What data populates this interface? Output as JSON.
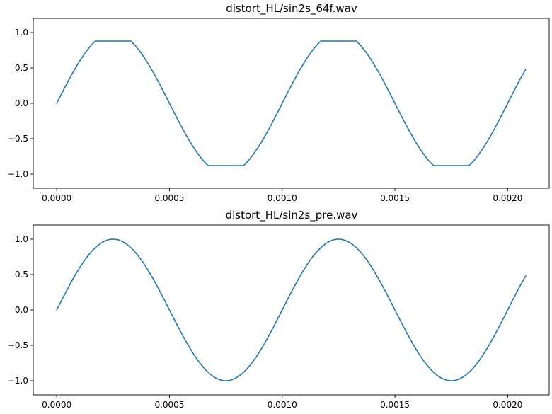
{
  "chart_data": [
    {
      "type": "line",
      "title": "distort_HL/sin2s_64f.wav",
      "xlabel": "",
      "ylabel": "",
      "xlim": [
        -0.000104,
        0.002184
      ],
      "ylim": [
        -1.2,
        1.2
      ],
      "xticks": [
        0.0,
        0.0005,
        0.001,
        0.0015,
        0.002
      ],
      "xtick_labels": [
        "0.0000",
        "0.0005",
        "0.0010",
        "0.0015",
        "0.0020"
      ],
      "yticks": [
        1.0,
        0.5,
        0.0,
        -0.5,
        -1.0
      ],
      "ytick_labels": [
        "1.0",
        "0.5",
        "0.0",
        "−0.5",
        "−1.0"
      ],
      "grid": false,
      "series": [
        {
          "color": "#1f77b4",
          "x": [
            0.0,
            5e-05,
            0.0001,
            0.000175,
            0.000325,
            0.0004,
            0.0005,
            0.0006,
            0.000675,
            0.000825,
            0.0009,
            0.001,
            0.0011,
            0.001175,
            0.001325,
            0.0014,
            0.0015,
            0.0016,
            0.001675,
            0.001825,
            0.0019,
            0.002,
            0.00208
          ],
          "y": [
            0.0,
            0.31,
            0.59,
            0.88,
            0.88,
            0.59,
            0.0,
            -0.59,
            -0.88,
            -0.88,
            -0.59,
            0.0,
            0.59,
            0.88,
            0.88,
            0.59,
            0.0,
            -0.59,
            -0.88,
            -0.88,
            -0.59,
            0.0,
            0.44
          ],
          "clip_level": 0.88
        }
      ]
    },
    {
      "type": "line",
      "title": "distort_HL/sin2s_pre.wav",
      "xlabel": "",
      "ylabel": "",
      "xlim": [
        -0.000104,
        0.002184
      ],
      "ylim": [
        -1.2,
        1.2
      ],
      "xticks": [
        0.0,
        0.0005,
        0.001,
        0.0015,
        0.002
      ],
      "xtick_labels": [
        "0.0000",
        "0.0005",
        "0.0010",
        "0.0015",
        "0.0020"
      ],
      "yticks": [
        1.0,
        0.5,
        0.0,
        -0.5,
        -1.0
      ],
      "ytick_labels": [
        "1.0",
        "0.5",
        "0.0",
        "−0.5",
        "−1.0"
      ],
      "grid": false,
      "series": [
        {
          "color": "#1f77b4",
          "x": [
            0.0,
            0.000125,
            0.00025,
            0.000375,
            0.0005,
            0.000625,
            0.00075,
            0.000875,
            0.001,
            0.001125,
            0.00125,
            0.001375,
            0.0015,
            0.001625,
            0.00175,
            0.001875,
            0.002,
            0.00208
          ],
          "y": [
            0.0,
            0.71,
            1.0,
            0.71,
            0.0,
            -0.71,
            -1.0,
            -0.71,
            0.0,
            0.71,
            1.0,
            0.71,
            0.0,
            -0.71,
            -1.0,
            -0.71,
            0.0,
            0.44
          ],
          "frequency_hz": 1000
        }
      ]
    }
  ]
}
